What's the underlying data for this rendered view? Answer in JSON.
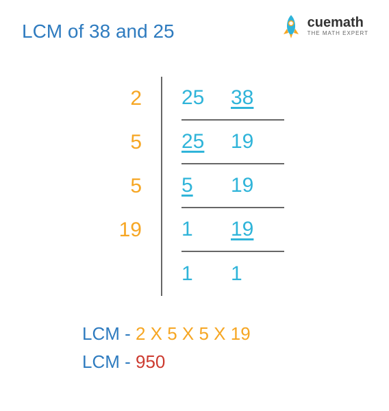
{
  "colors": {
    "title": "#2e7bbf",
    "divisor": "#f6a623",
    "number": "#2fb4d9",
    "remainder": "#2fb4d9",
    "border": "#666666",
    "lcm_label": "#2e7bbf",
    "lcm_factors": "#f6a623",
    "lcm_value": "#cc3a2f",
    "brand_cue": "#333333",
    "brand_math": "#333333",
    "rocket_main": "#2fb4d9",
    "rocket_accent": "#f6a623",
    "background": "#ffffff"
  },
  "title": "LCM of 38 and 25",
  "logo": {
    "brand": "cuemath",
    "tagline": "THE MATH EXPERT"
  },
  "fontsize": {
    "title": 28,
    "table": 30,
    "results": 26,
    "brand": 20,
    "tagline": 8
  },
  "division": {
    "rows": [
      {
        "divisor": "2",
        "cells": [
          {
            "v": "25",
            "u": false
          },
          {
            "v": "38",
            "u": true
          }
        ]
      },
      {
        "divisor": "5",
        "cells": [
          {
            "v": "25",
            "u": true
          },
          {
            "v": "19",
            "u": false
          }
        ]
      },
      {
        "divisor": "5",
        "cells": [
          {
            "v": "5",
            "u": true
          },
          {
            "v": "19",
            "u": false
          }
        ]
      },
      {
        "divisor": "19",
        "cells": [
          {
            "v": "1",
            "u": false
          },
          {
            "v": "19",
            "u": true
          }
        ]
      },
      {
        "divisor": "",
        "cells": [
          {
            "v": "1",
            "u": false
          },
          {
            "v": "1",
            "u": false
          }
        ]
      }
    ]
  },
  "results": {
    "line1_label": "LCM - ",
    "line1_value": "2 X 5 X 5 X 19",
    "line2_label": "LCM - ",
    "line2_value": "950"
  }
}
